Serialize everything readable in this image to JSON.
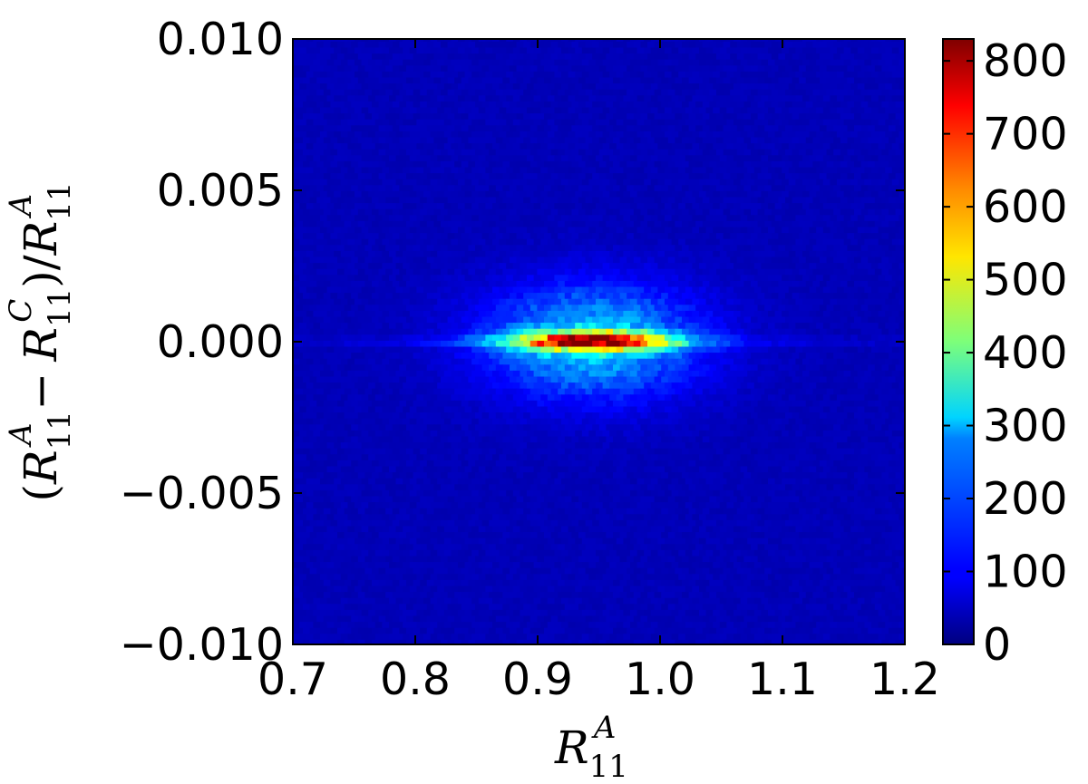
{
  "chart_data": {
    "type": "heatmap",
    "subtype": "hexbin-density",
    "title": "",
    "xlabel": {
      "base": "R",
      "sub": "11",
      "sup": "A"
    },
    "ylabel": {
      "open": "(",
      "t1": "R",
      "t1_sub": "11",
      "t1_sup": "A",
      "minus": "−",
      "t2": "R",
      "t2_sub": "11",
      "t2_sup": "C",
      "close": ")/",
      "t3": "R",
      "t3_sub": "11",
      "t3_sup": "A"
    },
    "xlim": [
      0.7,
      1.2
    ],
    "ylim": [
      -0.01,
      0.01
    ],
    "x_ticks": [
      "0.7",
      "0.8",
      "0.9",
      "1.0",
      "1.1",
      "1.2"
    ],
    "x_tick_values": [
      0.7,
      0.8,
      0.9,
      1.0,
      1.1,
      1.2
    ],
    "y_ticks": [
      "0.010",
      "0.005",
      "0.000",
      "−0.005",
      "−0.010"
    ],
    "y_tick_values": [
      0.01,
      0.005,
      0.0,
      -0.005,
      -0.01
    ],
    "colorbar": {
      "colormap": "jet",
      "range": [
        0,
        830
      ],
      "ticks": [
        "800",
        "700",
        "600",
        "500",
        "400",
        "300",
        "200",
        "100",
        "0"
      ],
      "tick_values": [
        800,
        700,
        600,
        500,
        400,
        300,
        200,
        100,
        0
      ]
    },
    "density_model": {
      "background_level": 45,
      "components": [
        {
          "x_center": 0.945,
          "y_center": 0.0,
          "x_sigma": 0.06,
          "y_sigma": 0.0013,
          "amplitude": 230
        },
        {
          "x_center": 0.945,
          "y_center": 0.0,
          "x_sigma": 0.045,
          "y_sigma": 0.00022,
          "amplitude": 600
        },
        {
          "x_center": 0.94,
          "y_center": 0.0,
          "x_sigma": 0.15,
          "y_sigma": 8e-05,
          "amplitude": 80
        }
      ]
    },
    "grid": false,
    "legend": "none"
  }
}
